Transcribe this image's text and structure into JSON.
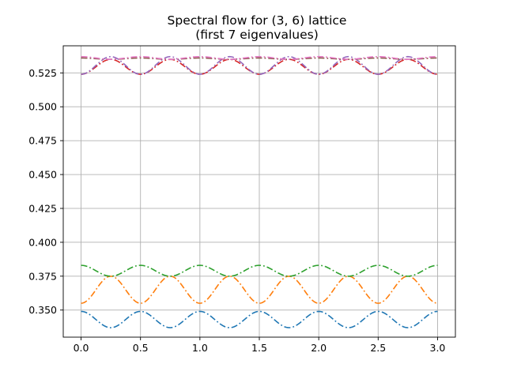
{
  "chart_data": {
    "type": "line",
    "title": "Spectral flow for (3, 6) lattice",
    "subtitle": "(first 7 eigenvalues)",
    "xlabel": "",
    "ylabel": "",
    "xlim": [
      -0.15,
      3.15
    ],
    "ylim": [
      0.33,
      0.545
    ],
    "xticks": [
      0.0,
      0.5,
      1.0,
      1.5,
      2.0,
      2.5,
      3.0
    ],
    "xtick_labels": [
      "0.0",
      "0.5",
      "1.0",
      "1.5",
      "2.0",
      "2.5",
      "3.0"
    ],
    "yticks": [
      0.35,
      0.375,
      0.4,
      0.425,
      0.45,
      0.475,
      0.5,
      0.525
    ],
    "ytick_labels": [
      "0.350",
      "0.375",
      "0.400",
      "0.425",
      "0.450",
      "0.475",
      "0.500",
      "0.525"
    ],
    "grid": true,
    "legend": "none",
    "line_style": "dash-dot",
    "x": [
      0.0,
      0.25,
      0.5,
      0.75,
      1.0,
      1.25,
      1.5,
      1.75,
      2.0,
      2.25,
      2.5,
      2.75,
      3.0
    ],
    "series": [
      {
        "color": "#1f77b4",
        "values": [
          0.349,
          0.337,
          0.349,
          0.337,
          0.349,
          0.337,
          0.349,
          0.337,
          0.349,
          0.337,
          0.349,
          0.337,
          0.349
        ]
      },
      {
        "color": "#ff7f0e",
        "values": [
          0.355,
          0.375,
          0.355,
          0.375,
          0.355,
          0.375,
          0.355,
          0.375,
          0.355,
          0.375,
          0.355,
          0.375,
          0.355
        ]
      },
      {
        "color": "#2ca02c",
        "values": [
          0.383,
          0.375,
          0.383,
          0.375,
          0.383,
          0.375,
          0.383,
          0.375,
          0.383,
          0.375,
          0.383,
          0.375,
          0.383
        ]
      },
      {
        "color": "#d62728",
        "values": [
          0.524,
          0.535,
          0.524,
          0.535,
          0.524,
          0.535,
          0.524,
          0.535,
          0.524,
          0.535,
          0.524,
          0.535,
          0.524
        ]
      },
      {
        "color": "#9467bd",
        "values": [
          0.524,
          0.537,
          0.524,
          0.537,
          0.524,
          0.537,
          0.524,
          0.537,
          0.524,
          0.537,
          0.524,
          0.537,
          0.524
        ]
      },
      {
        "color": "#8c564b",
        "values": [
          0.536,
          0.535,
          0.536,
          0.535,
          0.536,
          0.535,
          0.536,
          0.535,
          0.536,
          0.535,
          0.536,
          0.535,
          0.536
        ]
      },
      {
        "color": "#e377c2",
        "values": [
          0.537,
          0.535,
          0.537,
          0.535,
          0.537,
          0.535,
          0.537,
          0.535,
          0.537,
          0.535,
          0.537,
          0.535,
          0.537
        ]
      }
    ]
  }
}
